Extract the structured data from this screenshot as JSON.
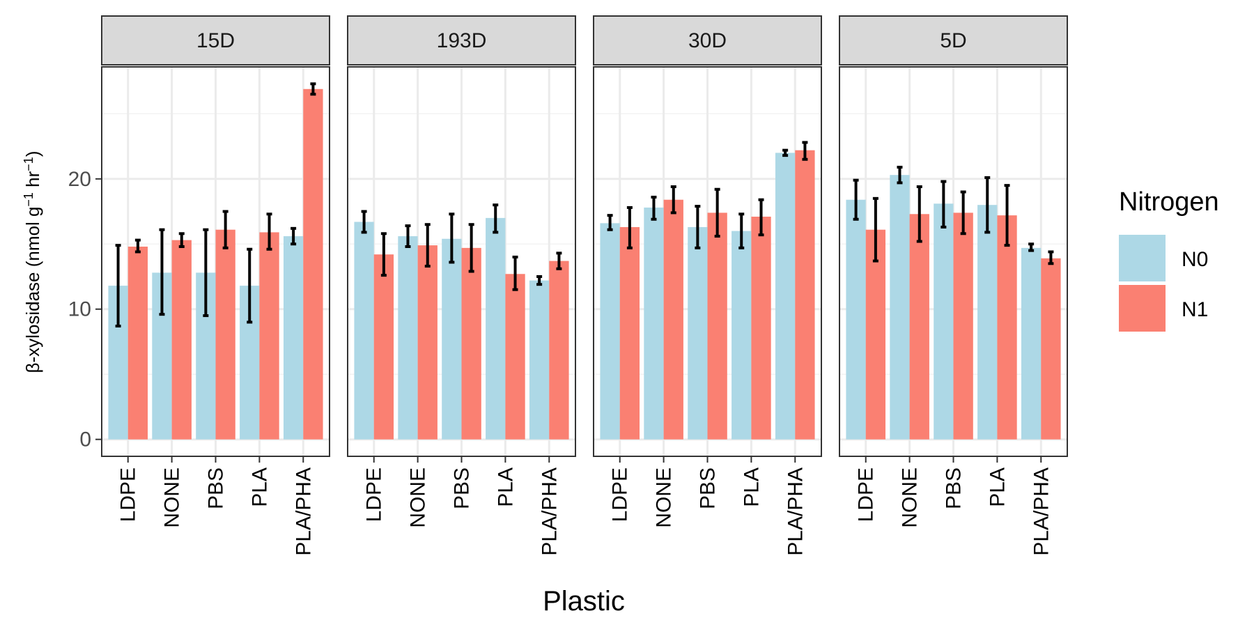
{
  "chart_data": {
    "type": "bar",
    "facets": [
      {
        "label": "15D",
        "categories": [
          "LDPE",
          "NONE",
          "PBS",
          "PLA",
          "PLA/PHA"
        ],
        "series": [
          {
            "name": "N0",
            "values": [
              11.8,
              12.8,
              12.8,
              11.8,
              15.6
            ],
            "err_low": [
              8.7,
              9.6,
              9.5,
              9.0,
              15.0
            ],
            "err_high": [
              14.9,
              16.1,
              16.1,
              14.6,
              16.2
            ]
          },
          {
            "name": "N1",
            "values": [
              14.8,
              15.3,
              16.1,
              15.9,
              26.9
            ],
            "err_low": [
              14.4,
              14.8,
              14.7,
              14.6,
              26.5
            ],
            "err_high": [
              15.3,
              15.8,
              17.5,
              17.3,
              27.3
            ]
          }
        ]
      },
      {
        "label": "193D",
        "categories": [
          "LDPE",
          "NONE",
          "PBS",
          "PLA",
          "PLA/PHA"
        ],
        "series": [
          {
            "name": "N0",
            "values": [
              16.7,
              15.6,
              15.4,
              17.0,
              12.2
            ],
            "err_low": [
              15.9,
              14.8,
              13.6,
              15.9,
              11.9
            ],
            "err_high": [
              17.5,
              16.4,
              17.3,
              18.0,
              12.5
            ]
          },
          {
            "name": "N1",
            "values": [
              14.2,
              14.9,
              14.7,
              12.7,
              13.7
            ],
            "err_low": [
              12.6,
              13.3,
              12.9,
              11.5,
              13.1
            ],
            "err_high": [
              15.8,
              16.5,
              16.5,
              14.0,
              14.3
            ]
          }
        ]
      },
      {
        "label": "30D",
        "categories": [
          "LDPE",
          "NONE",
          "PBS",
          "PLA",
          "PLA/PHA"
        ],
        "series": [
          {
            "name": "N0",
            "values": [
              16.6,
              17.8,
              16.3,
              16.0,
              22.0
            ],
            "err_low": [
              16.1,
              16.9,
              14.7,
              14.7,
              21.8
            ],
            "err_high": [
              17.2,
              18.6,
              17.9,
              17.3,
              22.2
            ]
          },
          {
            "name": "N1",
            "values": [
              16.3,
              18.4,
              17.4,
              17.1,
              22.2
            ],
            "err_low": [
              14.7,
              17.4,
              15.6,
              15.7,
              21.5
            ],
            "err_high": [
              17.8,
              19.4,
              19.2,
              18.4,
              22.8
            ]
          }
        ]
      },
      {
        "label": "5D",
        "categories": [
          "LDPE",
          "NONE",
          "PBS",
          "PLA",
          "PLA/PHA"
        ],
        "series": [
          {
            "name": "N0",
            "values": [
              18.4,
              20.3,
              18.1,
              18.0,
              14.7
            ],
            "err_low": [
              16.9,
              19.7,
              16.3,
              15.9,
              14.5
            ],
            "err_high": [
              19.9,
              20.9,
              19.8,
              20.1,
              15.0
            ]
          },
          {
            "name": "N1",
            "values": [
              16.1,
              17.3,
              17.4,
              17.2,
              13.9
            ],
            "err_low": [
              13.7,
              15.2,
              15.8,
              14.9,
              13.5
            ],
            "err_high": [
              18.5,
              19.4,
              19.0,
              19.5,
              14.4
            ]
          }
        ]
      }
    ],
    "xlabel": "Plastic",
    "ylabel": {
      "prefix": "β-xylosidase (nmol g",
      "sup1": "−1",
      "mid": " hr",
      "sup2": "−1",
      "suffix": ")"
    },
    "ylim": [
      -1.3,
      28.6
    ],
    "yticks": [
      0,
      10,
      20
    ],
    "grid": true,
    "legend": {
      "title": "Nitrogen",
      "placement": "right",
      "entries": [
        "N0",
        "N1"
      ]
    },
    "colors": {
      "N0": "#ADD8E6",
      "N1": "#FA8072",
      "strip_bg": "#D9D9D9",
      "grid_major": "#EBEBEB",
      "grid_minor": "#F3F3F3",
      "border": "#333333"
    }
  }
}
